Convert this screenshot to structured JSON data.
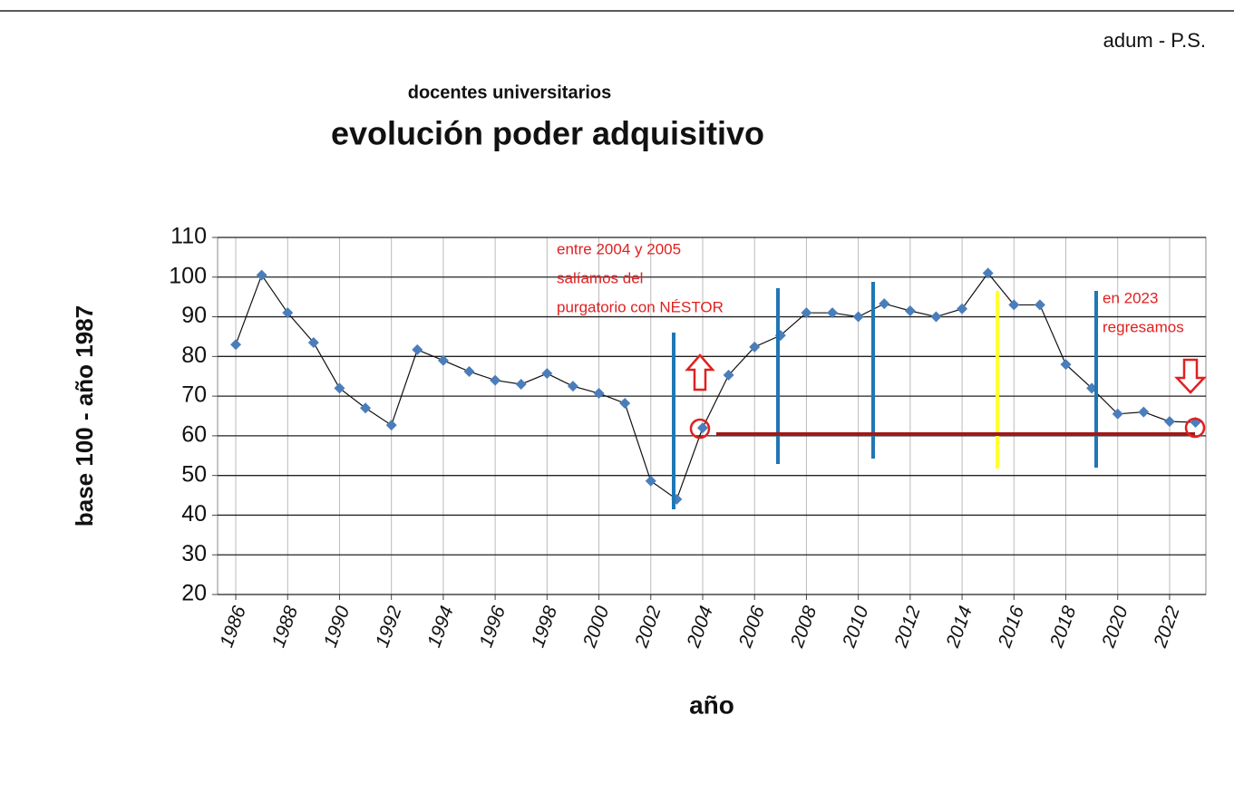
{
  "chart_data": {
    "type": "line",
    "source_note": "adum - P.S.",
    "subtitle": "docentes universitarios",
    "title": "evolución poder adquisitivo",
    "ylabel": "base 100 - año 1987",
    "xlabel": "año",
    "annotations": [
      [
        "entre 2004  y 2005",
        "salíamos  del",
        "purgatorio  con  NÉSTOR"
      ],
      [
        "en 2023",
        "regresamos"
      ]
    ],
    "x": [
      1986,
      1987,
      1988,
      1989,
      1990,
      1991,
      1992,
      1993,
      1994,
      1995,
      1996,
      1997,
      1998,
      1999,
      2000,
      2001,
      2002,
      2003,
      2004,
      2005,
      2006,
      2007,
      2008,
      2009,
      2010,
      2011,
      2012,
      2013,
      2014,
      2015,
      2016,
      2017,
      2018,
      2019,
      2020,
      2021,
      2022,
      2023
    ],
    "series": [
      {
        "color": "#4a7ebb",
        "values": [
          83,
          100.5,
          91,
          83.5,
          72,
          67,
          62.7,
          81.7,
          79,
          76.2,
          74,
          73,
          75.7,
          72.5,
          70.7,
          68.2,
          48.6,
          44,
          62,
          75.3,
          82.4,
          85.3,
          91,
          91,
          90,
          93.3,
          91.5,
          90,
          92,
          101,
          93,
          93,
          78,
          72,
          65.5,
          66,
          63.6,
          63.4
        ]
      }
    ],
    "xlim": [
      1985.3,
      2023.4
    ],
    "xticks": [
      1986,
      1988,
      1990,
      1992,
      1994,
      1996,
      1998,
      2000,
      2002,
      2004,
      2006,
      2008,
      2010,
      2012,
      2014,
      2016,
      2018,
      2020,
      2022
    ],
    "ylim": [
      20,
      110
    ],
    "yticks": [
      20,
      30,
      40,
      50,
      60,
      70,
      80,
      90,
      100,
      110
    ],
    "grid": true
  }
}
